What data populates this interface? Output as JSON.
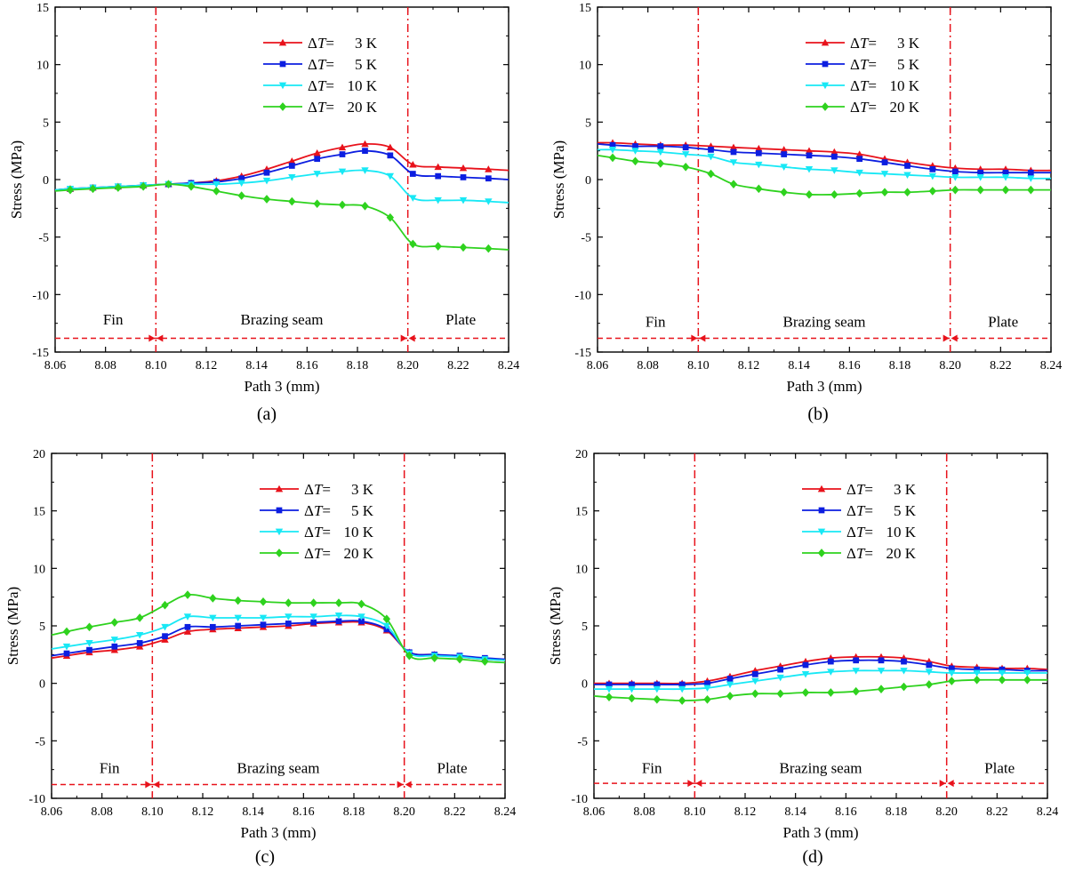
{
  "chart_data": [
    {
      "panel_label": "(a)",
      "type": "line",
      "xlabel": "Path 3 (mm)",
      "ylabel": "Stress (MPa)",
      "xlim": [
        8.06,
        8.24
      ],
      "ylim": [
        -15,
        15
      ],
      "xticks": [
        "8.06",
        "8.08",
        "8.10",
        "8.12",
        "8.14",
        "8.16",
        "8.18",
        "8.20",
        "8.22",
        "8.24"
      ],
      "yticks": [
        "-15",
        "-10",
        "-5",
        "0",
        "5",
        "10",
        "15"
      ],
      "region_lines": [
        8.1,
        8.2
      ],
      "regions": [
        {
          "label": "Fin",
          "x": 8.083
        },
        {
          "label": "Brazing seam",
          "x": 8.15
        },
        {
          "label": "Plate",
          "x": 8.221
        }
      ],
      "region_arrow_y": -13.8,
      "region_label_y": -12.6,
      "legend_position": "top-center",
      "series": [
        {
          "name": "3 K",
          "marker": "triangle-up",
          "color": "#e8121b",
          "x": [
            8.06,
            8.066,
            8.075,
            8.085,
            8.095,
            8.105,
            8.114,
            8.124,
            8.134,
            8.144,
            8.154,
            8.164,
            8.174,
            8.183,
            8.193,
            8.202,
            8.212,
            8.222,
            8.232,
            8.24
          ],
          "values": [
            -0.9,
            -0.8,
            -0.7,
            -0.6,
            -0.5,
            -0.4,
            -0.3,
            -0.1,
            0.3,
            0.9,
            1.6,
            2.3,
            2.8,
            3.1,
            2.8,
            1.3,
            1.1,
            1.0,
            0.9,
            0.8
          ]
        },
        {
          "name": "5 K",
          "marker": "square",
          "color": "#0c1ee0",
          "x": [
            8.06,
            8.066,
            8.075,
            8.085,
            8.095,
            8.105,
            8.114,
            8.124,
            8.134,
            8.144,
            8.154,
            8.164,
            8.174,
            8.183,
            8.193,
            8.202,
            8.212,
            8.222,
            8.232,
            8.24
          ],
          "values": [
            -0.9,
            -0.8,
            -0.7,
            -0.6,
            -0.5,
            -0.4,
            -0.3,
            -0.2,
            0.1,
            0.6,
            1.2,
            1.8,
            2.2,
            2.5,
            2.1,
            0.5,
            0.3,
            0.2,
            0.1,
            0.0
          ]
        },
        {
          "name": "10 K",
          "marker": "triangle-down",
          "color": "#18e8f5",
          "x": [
            8.06,
            8.066,
            8.075,
            8.085,
            8.095,
            8.105,
            8.114,
            8.124,
            8.134,
            8.144,
            8.154,
            8.164,
            8.174,
            8.183,
            8.193,
            8.202,
            8.212,
            8.222,
            8.232,
            8.24
          ],
          "values": [
            -0.9,
            -0.8,
            -0.7,
            -0.6,
            -0.5,
            -0.4,
            -0.4,
            -0.4,
            -0.3,
            -0.1,
            0.2,
            0.5,
            0.7,
            0.8,
            0.3,
            -1.6,
            -1.8,
            -1.8,
            -1.9,
            -2.0
          ]
        },
        {
          "name": "20 K",
          "marker": "diamond",
          "color": "#2ed21e",
          "x": [
            8.06,
            8.066,
            8.075,
            8.085,
            8.095,
            8.105,
            8.114,
            8.124,
            8.134,
            8.144,
            8.154,
            8.164,
            8.174,
            8.183,
            8.193,
            8.202,
            8.212,
            8.222,
            8.232,
            8.24
          ],
          "values": [
            -1.0,
            -0.9,
            -0.8,
            -0.7,
            -0.6,
            -0.4,
            -0.6,
            -1.0,
            -1.4,
            -1.7,
            -1.9,
            -2.1,
            -2.2,
            -2.3,
            -3.3,
            -5.6,
            -5.8,
            -5.9,
            -6.0,
            -6.1
          ]
        }
      ]
    },
    {
      "panel_label": "(b)",
      "type": "line",
      "xlabel": "Path 3 (mm)",
      "ylabel": "Stress (MPa)",
      "xlim": [
        8.06,
        8.24
      ],
      "ylim": [
        -15,
        15
      ],
      "xticks": [
        "8.06",
        "8.08",
        "8.10",
        "8.12",
        "8.14",
        "8.16",
        "8.18",
        "8.20",
        "8.22",
        "8.24"
      ],
      "yticks": [
        "-15",
        "-10",
        "-5",
        "0",
        "5",
        "10",
        "15"
      ],
      "region_lines": [
        8.1,
        8.2
      ],
      "regions": [
        {
          "label": "Fin",
          "x": 8.083
        },
        {
          "label": "Brazing seam",
          "x": 8.15
        },
        {
          "label": "Plate",
          "x": 8.221
        }
      ],
      "region_arrow_y": -13.8,
      "region_label_y": -12.8,
      "legend_position": "top-right",
      "series": [
        {
          "name": "3 K",
          "marker": "triangle-up",
          "color": "#e8121b",
          "x": [
            8.06,
            8.066,
            8.075,
            8.085,
            8.095,
            8.105,
            8.114,
            8.124,
            8.134,
            8.144,
            8.154,
            8.164,
            8.174,
            8.183,
            8.193,
            8.202,
            8.212,
            8.222,
            8.232,
            8.24
          ],
          "values": [
            3.2,
            3.2,
            3.1,
            3.0,
            3.0,
            2.9,
            2.8,
            2.7,
            2.6,
            2.5,
            2.4,
            2.2,
            1.8,
            1.5,
            1.2,
            1.0,
            0.9,
            0.9,
            0.8,
            0.8
          ]
        },
        {
          "name": "5 K",
          "marker": "square",
          "color": "#0c1ee0",
          "x": [
            8.06,
            8.066,
            8.075,
            8.085,
            8.095,
            8.105,
            8.114,
            8.124,
            8.134,
            8.144,
            8.154,
            8.164,
            8.174,
            8.183,
            8.193,
            8.202,
            8.212,
            8.222,
            8.232,
            8.24
          ],
          "values": [
            3.1,
            3.0,
            2.9,
            2.9,
            2.8,
            2.6,
            2.4,
            2.3,
            2.2,
            2.1,
            2.0,
            1.8,
            1.5,
            1.2,
            0.9,
            0.7,
            0.6,
            0.6,
            0.6,
            0.6
          ]
        },
        {
          "name": "10 K",
          "marker": "triangle-down",
          "color": "#18e8f5",
          "x": [
            8.06,
            8.066,
            8.075,
            8.085,
            8.095,
            8.105,
            8.114,
            8.124,
            8.134,
            8.144,
            8.154,
            8.164,
            8.174,
            8.183,
            8.193,
            8.202,
            8.212,
            8.222,
            8.232,
            8.24
          ],
          "values": [
            2.6,
            2.6,
            2.5,
            2.4,
            2.2,
            2.0,
            1.5,
            1.3,
            1.1,
            0.9,
            0.8,
            0.6,
            0.5,
            0.4,
            0.3,
            0.2,
            0.2,
            0.2,
            0.1,
            0.1
          ]
        },
        {
          "name": "20 K",
          "marker": "diamond",
          "color": "#2ed21e",
          "x": [
            8.06,
            8.066,
            8.075,
            8.085,
            8.095,
            8.105,
            8.114,
            8.124,
            8.134,
            8.144,
            8.154,
            8.164,
            8.174,
            8.183,
            8.193,
            8.202,
            8.212,
            8.222,
            8.232,
            8.24
          ],
          "values": [
            2.1,
            1.9,
            1.6,
            1.4,
            1.1,
            0.5,
            -0.4,
            -0.8,
            -1.1,
            -1.3,
            -1.3,
            -1.2,
            -1.1,
            -1.1,
            -1.0,
            -0.9,
            -0.9,
            -0.9,
            -0.9,
            -0.9
          ]
        }
      ]
    },
    {
      "panel_label": "(c)",
      "type": "line",
      "xlabel": "Path 3 (mm)",
      "ylabel": "Stress (MPa)",
      "xlim": [
        8.06,
        8.24
      ],
      "ylim": [
        -10,
        20
      ],
      "xticks": [
        "8.06",
        "8.08",
        "8.10",
        "8.12",
        "8.14",
        "8.16",
        "8.18",
        "8.20",
        "8.22",
        "8.24"
      ],
      "yticks": [
        "-10",
        "-5",
        "0",
        "5",
        "10",
        "15",
        "20"
      ],
      "region_lines": [
        8.1,
        8.2
      ],
      "regions": [
        {
          "label": "Fin",
          "x": 8.083
        },
        {
          "label": "Brazing seam",
          "x": 8.15
        },
        {
          "label": "Plate",
          "x": 8.219
        }
      ],
      "region_arrow_y": -8.8,
      "region_label_y": -7.8,
      "legend_position": "top-right",
      "series": [
        {
          "name": "3 K",
          "marker": "triangle-up",
          "color": "#e8121b",
          "x": [
            8.06,
            8.066,
            8.075,
            8.085,
            8.095,
            8.105,
            8.114,
            8.124,
            8.134,
            8.144,
            8.154,
            8.164,
            8.174,
            8.183,
            8.193,
            8.202,
            8.212,
            8.222,
            8.232,
            8.24
          ],
          "values": [
            2.2,
            2.4,
            2.7,
            2.9,
            3.2,
            3.8,
            4.5,
            4.7,
            4.8,
            4.9,
            5.0,
            5.2,
            5.3,
            5.3,
            4.6,
            2.7,
            2.5,
            2.3,
            2.1,
            2.0
          ]
        },
        {
          "name": "5 K",
          "marker": "square",
          "color": "#0c1ee0",
          "x": [
            8.06,
            8.066,
            8.075,
            8.085,
            8.095,
            8.105,
            8.114,
            8.124,
            8.134,
            8.144,
            8.154,
            8.164,
            8.174,
            8.183,
            8.193,
            8.202,
            8.212,
            8.222,
            8.232,
            8.24
          ],
          "values": [
            2.4,
            2.6,
            2.9,
            3.2,
            3.5,
            4.1,
            4.9,
            4.9,
            5.0,
            5.1,
            5.2,
            5.3,
            5.4,
            5.4,
            4.7,
            2.7,
            2.5,
            2.4,
            2.2,
            2.1
          ]
        },
        {
          "name": "10 K",
          "marker": "triangle-down",
          "color": "#18e8f5",
          "x": [
            8.06,
            8.066,
            8.075,
            8.085,
            8.095,
            8.105,
            8.114,
            8.124,
            8.134,
            8.144,
            8.154,
            8.164,
            8.174,
            8.183,
            8.193,
            8.202,
            8.212,
            8.222,
            8.232,
            8.24
          ],
          "values": [
            3.0,
            3.2,
            3.5,
            3.8,
            4.2,
            4.9,
            5.8,
            5.7,
            5.7,
            5.7,
            5.8,
            5.8,
            5.9,
            5.8,
            5.0,
            2.6,
            2.4,
            2.3,
            2.1,
            2.0
          ]
        },
        {
          "name": "20 K",
          "marker": "diamond",
          "color": "#2ed21e",
          "x": [
            8.06,
            8.066,
            8.075,
            8.085,
            8.095,
            8.105,
            8.114,
            8.124,
            8.134,
            8.144,
            8.154,
            8.164,
            8.174,
            8.183,
            8.193,
            8.202,
            8.212,
            8.222,
            8.232,
            8.24
          ],
          "values": [
            4.2,
            4.5,
            4.9,
            5.3,
            5.7,
            6.8,
            7.7,
            7.4,
            7.2,
            7.1,
            7.0,
            7.0,
            7.0,
            6.9,
            5.6,
            2.4,
            2.2,
            2.1,
            1.9,
            1.8
          ]
        }
      ]
    },
    {
      "panel_label": "(d)",
      "type": "line",
      "xlabel": "Path 3 (mm)",
      "ylabel": "Stress (MPa)",
      "xlim": [
        8.06,
        8.24
      ],
      "ylim": [
        -10,
        20
      ],
      "xticks": [
        "8.06",
        "8.08",
        "8.10",
        "8.12",
        "8.14",
        "8.16",
        "8.18",
        "8.20",
        "8.22",
        "8.24"
      ],
      "yticks": [
        "-10",
        "-5",
        "0",
        "5",
        "10",
        "15",
        "20"
      ],
      "region_lines": [
        8.1,
        8.2
      ],
      "regions": [
        {
          "label": "Fin",
          "x": 8.083
        },
        {
          "label": "Brazing seam",
          "x": 8.15
        },
        {
          "label": "Plate",
          "x": 8.221
        }
      ],
      "region_arrow_y": -8.7,
      "region_label_y": -7.8,
      "legend_position": "top-right",
      "series": [
        {
          "name": "3 K",
          "marker": "triangle-up",
          "color": "#e8121b",
          "x": [
            8.06,
            8.066,
            8.075,
            8.085,
            8.095,
            8.105,
            8.114,
            8.124,
            8.134,
            8.144,
            8.154,
            8.164,
            8.174,
            8.183,
            8.193,
            8.202,
            8.212,
            8.222,
            8.232,
            8.24
          ],
          "values": [
            0.0,
            0.0,
            0.0,
            0.0,
            0.0,
            0.2,
            0.6,
            1.1,
            1.5,
            1.9,
            2.2,
            2.3,
            2.3,
            2.2,
            1.9,
            1.5,
            1.4,
            1.3,
            1.3,
            1.2
          ]
        },
        {
          "name": "5 K",
          "marker": "square",
          "color": "#0c1ee0",
          "x": [
            8.06,
            8.066,
            8.075,
            8.085,
            8.095,
            8.105,
            8.114,
            8.124,
            8.134,
            8.144,
            8.154,
            8.164,
            8.174,
            8.183,
            8.193,
            8.202,
            8.212,
            8.222,
            8.232,
            8.24
          ],
          "values": [
            -0.1,
            -0.1,
            -0.1,
            -0.1,
            -0.1,
            0.0,
            0.4,
            0.8,
            1.2,
            1.6,
            1.9,
            2.0,
            2.0,
            1.9,
            1.6,
            1.3,
            1.2,
            1.2,
            1.1,
            1.1
          ]
        },
        {
          "name": "10 K",
          "marker": "triangle-down",
          "color": "#18e8f5",
          "x": [
            8.06,
            8.066,
            8.075,
            8.085,
            8.095,
            8.105,
            8.114,
            8.124,
            8.134,
            8.144,
            8.154,
            8.164,
            8.174,
            8.183,
            8.193,
            8.202,
            8.212,
            8.222,
            8.232,
            8.24
          ],
          "values": [
            -0.5,
            -0.5,
            -0.5,
            -0.5,
            -0.5,
            -0.4,
            -0.1,
            0.2,
            0.5,
            0.8,
            1.0,
            1.1,
            1.1,
            1.1,
            1.0,
            0.9,
            0.9,
            0.9,
            0.9,
            0.9
          ]
        },
        {
          "name": "20 K",
          "marker": "diamond",
          "color": "#2ed21e",
          "x": [
            8.06,
            8.066,
            8.075,
            8.085,
            8.095,
            8.105,
            8.114,
            8.124,
            8.134,
            8.144,
            8.154,
            8.164,
            8.174,
            8.183,
            8.193,
            8.202,
            8.212,
            8.222,
            8.232,
            8.24
          ],
          "values": [
            -1.1,
            -1.2,
            -1.3,
            -1.4,
            -1.5,
            -1.4,
            -1.1,
            -0.9,
            -0.9,
            -0.8,
            -0.8,
            -0.7,
            -0.5,
            -0.3,
            -0.1,
            0.2,
            0.3,
            0.3,
            0.3,
            0.3
          ]
        }
      ]
    }
  ]
}
